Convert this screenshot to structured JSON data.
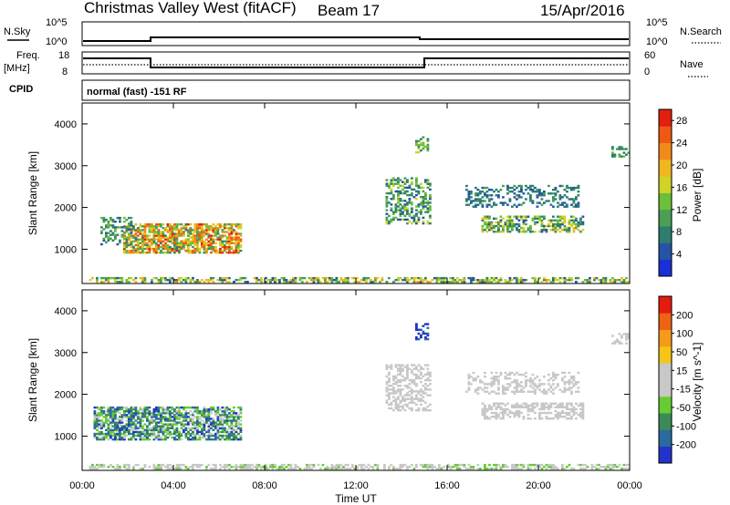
{
  "header": {
    "title": "Christmas Valley West (fitACF)",
    "beam": "Beam 17",
    "date": "15/Apr/2016"
  },
  "top_panels": {
    "nsky_label": "N.Sky",
    "nsky_ticks": [
      "10^5",
      "10^0"
    ],
    "nsearch_label": "N.Search",
    "nsearch_ticks": [
      "10^5",
      "10^0"
    ],
    "freq_label": "Freq.",
    "freq_unit": "[MHz]",
    "freq_ticks": [
      "18",
      "8"
    ],
    "nave_label": "Nave",
    "nave_ticks": [
      "60",
      "0"
    ],
    "cpid_label": "CPID",
    "cpid_value": "normal (fast) -151 RF"
  },
  "colors": {
    "power_scale": [
      "#1a2fd6",
      "#2453a8",
      "#2e7e6e",
      "#4a9e55",
      "#6cbf3a",
      "#cfd427",
      "#f0b820",
      "#f28a1a",
      "#ee5a14",
      "#e21f10"
    ],
    "velocity_scale": [
      "#2233cc",
      "#2a6aa0",
      "#3b8a5a",
      "#66cc33",
      "#c8c8c8",
      "#c8c8c8",
      "#f5c518",
      "#f59a1a",
      "#ee6414",
      "#e51b10"
    ]
  },
  "chart_data": [
    {
      "type": "heatmap",
      "panel": "power",
      "xlabel": "Time UT",
      "ylabel": "Slant Range [km]",
      "x_ticks": [
        "00:00",
        "04:00",
        "08:00",
        "12:00",
        "16:00",
        "20:00",
        "00:00"
      ],
      "y_ticks": [
        1000,
        2000,
        3000,
        4000
      ],
      "xlim": [
        0,
        24
      ],
      "ylim": [
        180,
        4500
      ],
      "colorbar": {
        "label": "Power [dB]",
        "ticks": [
          "28",
          "24",
          "20",
          "16",
          "12",
          "8",
          "4"
        ],
        "range": [
          0,
          30
        ]
      },
      "regions": [
        {
          "t0": 0.3,
          "t1": 24,
          "r0": 200,
          "r1": 320,
          "density": 0.55,
          "value": [
            4,
            22
          ]
        },
        {
          "t0": 1.8,
          "t1": 6.9,
          "r0": 900,
          "r1": 1600,
          "density": 0.75,
          "value": [
            8,
            28
          ]
        },
        {
          "t0": 0.8,
          "t1": 2.2,
          "r0": 1100,
          "r1": 1750,
          "density": 0.45,
          "value": [
            4,
            14
          ]
        },
        {
          "t0": 13.3,
          "t1": 15.2,
          "r0": 1600,
          "r1": 2700,
          "density": 0.45,
          "value": [
            4,
            16
          ]
        },
        {
          "t0": 14.6,
          "t1": 15.1,
          "r0": 3300,
          "r1": 3700,
          "density": 0.5,
          "value": [
            6,
            18
          ]
        },
        {
          "t0": 17.5,
          "t1": 22.0,
          "r0": 1400,
          "r1": 1800,
          "density": 0.55,
          "value": [
            4,
            20
          ]
        },
        {
          "t0": 16.8,
          "t1": 21.8,
          "r0": 2000,
          "r1": 2500,
          "density": 0.35,
          "value": [
            4,
            10
          ]
        },
        {
          "t0": 23.2,
          "t1": 24,
          "r0": 3200,
          "r1": 3450,
          "density": 0.5,
          "value": [
            6,
            14
          ]
        }
      ]
    },
    {
      "type": "heatmap",
      "panel": "velocity",
      "xlabel": "Time UT",
      "ylabel": "Slant Range [km]",
      "x_ticks": [
        "00:00",
        "04:00",
        "08:00",
        "12:00",
        "16:00",
        "20:00",
        "00:00"
      ],
      "y_ticks": [
        1000,
        2000,
        3000,
        4000
      ],
      "xlim": [
        0,
        24
      ],
      "ylim": [
        180,
        4500
      ],
      "colorbar": {
        "label": "Velocity [m s^-1]",
        "ticks": [
          "200",
          "100",
          "50",
          "15",
          "-15",
          "-50",
          "-100",
          "-200"
        ],
        "range": [
          -250,
          250
        ]
      },
      "regions": [
        {
          "t0": 0.3,
          "t1": 24,
          "r0": 200,
          "r1": 320,
          "density": 0.55,
          "value": [
            -60,
            -20
          ]
        },
        {
          "t0": 0.5,
          "t1": 6.9,
          "r0": 900,
          "r1": 1700,
          "density": 0.7,
          "value": [
            -220,
            -10
          ]
        },
        {
          "t0": 13.3,
          "t1": 15.2,
          "r0": 1600,
          "r1": 2700,
          "density": 0.45,
          "value": [
            -15,
            15
          ]
        },
        {
          "t0": 14.6,
          "t1": 15.1,
          "r0": 3300,
          "r1": 3700,
          "density": 0.5,
          "value": [
            -240,
            -180
          ]
        },
        {
          "t0": 17.5,
          "t1": 22.0,
          "r0": 1400,
          "r1": 1800,
          "density": 0.55,
          "value": [
            -15,
            15
          ]
        },
        {
          "t0": 16.8,
          "t1": 21.8,
          "r0": 2000,
          "r1": 2500,
          "density": 0.35,
          "value": [
            -15,
            15
          ]
        },
        {
          "t0": 23.2,
          "t1": 24,
          "r0": 3200,
          "r1": 3450,
          "density": 0.5,
          "value": [
            -15,
            15
          ]
        }
      ]
    }
  ]
}
